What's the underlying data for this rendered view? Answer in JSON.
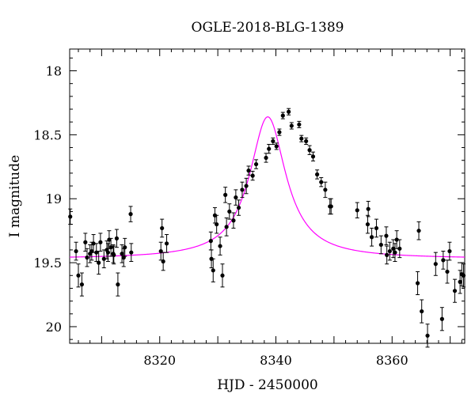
{
  "chart_data": {
    "type": "scatter",
    "title": "OGLE-2018-BLG-1389",
    "xlabel": "HJD - 2450000",
    "ylabel": "I magnitude",
    "xlim": [
      8304.5,
      8372.5
    ],
    "ylim": [
      20.13,
      17.83
    ],
    "y_inverted": true,
    "xticks": [
      8320,
      8340,
      8360
    ],
    "yticks": [
      18,
      18.5,
      19,
      19.5,
      20
    ],
    "xtick_labels": [
      "8320",
      "8340",
      "8360"
    ],
    "ytick_labels": [
      "18",
      "18.5",
      "19",
      "19.5",
      "20"
    ],
    "grid": false,
    "colors": {
      "points": "#000000",
      "model": "#ff00ff"
    },
    "model": {
      "name": "",
      "baseline_mag": 19.47,
      "peak_mag": 18.36,
      "t0": 8338.6,
      "width_days": 3.8
    },
    "series": [
      {
        "x": [
          8304.6,
          8305.6,
          8306.0,
          8306.6,
          8307.2,
          8307.5,
          8308.0,
          8308.3,
          8308.6,
          8309.1,
          8309.5,
          8309.8,
          8310.4,
          8310.9,
          8311.1,
          8311.3,
          8311.6,
          8312.0,
          8312.1,
          8312.6,
          8312.8,
          8313.5,
          8313.8,
          8314.0,
          8315.0,
          8315.1,
          8320.2,
          8320.4,
          8320.6,
          8321.2,
          8328.8,
          8328.9,
          8329.2,
          8329.5,
          8329.8,
          8330.4,
          8330.8,
          8331.3,
          8331.5,
          8332.0,
          8332.7,
          8333.1,
          8333.6,
          8334.2,
          8334.9,
          8335.3,
          8336.0,
          8336.6,
          8338.3,
          8338.8,
          8339.5,
          8340.1,
          8340.6,
          8341.2,
          8342.2,
          8342.7,
          8344.0,
          8344.4,
          8345.2,
          8345.8,
          8346.4,
          8347.1,
          8347.8,
          8348.5,
          8349.3,
          8349.5,
          8354.0,
          8355.8,
          8355.9,
          8356.5,
          8357.3,
          8358.1,
          8359.0,
          8359.1,
          8359.6,
          8360.2,
          8360.5,
          8360.8,
          8361.3,
          8364.4,
          8364.6,
          8365.1,
          8366.1,
          8367.5,
          8368.6,
          8368.8,
          8369.5,
          8369.9,
          8370.8,
          8371.7,
          8372.0,
          8372.3
        ],
        "y": [
          19.14,
          19.41,
          19.6,
          19.67,
          19.34,
          19.46,
          19.43,
          19.41,
          19.35,
          19.42,
          19.5,
          19.34,
          19.47,
          19.4,
          19.42,
          19.32,
          19.38,
          19.43,
          19.44,
          19.31,
          19.67,
          19.43,
          19.46,
          19.38,
          19.12,
          19.42,
          19.41,
          19.23,
          19.49,
          19.35,
          19.33,
          19.47,
          19.56,
          19.13,
          19.2,
          19.37,
          19.6,
          18.97,
          19.22,
          19.1,
          19.17,
          18.99,
          19.07,
          18.93,
          18.9,
          18.78,
          18.82,
          18.73,
          18.68,
          18.61,
          18.55,
          18.59,
          18.48,
          18.35,
          18.32,
          18.43,
          18.42,
          18.53,
          18.55,
          18.62,
          18.67,
          18.81,
          18.87,
          18.93,
          19.06,
          19.06,
          19.09,
          19.2,
          19.08,
          19.3,
          19.23,
          19.36,
          19.29,
          19.44,
          19.41,
          19.39,
          19.42,
          19.32,
          19.39,
          19.66,
          19.25,
          19.88,
          20.07,
          19.51,
          19.94,
          19.48,
          19.57,
          19.41,
          19.72,
          19.65,
          19.59,
          19.6
        ]
      }
    ]
  }
}
